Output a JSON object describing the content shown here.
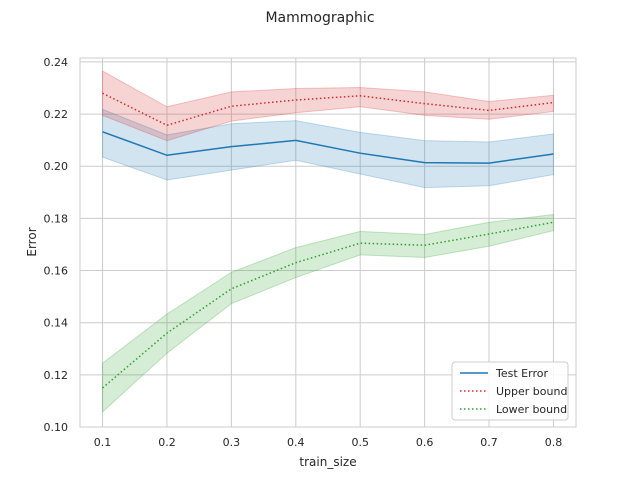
{
  "chart_data": {
    "type": "line",
    "title": "Mammographic",
    "xlabel": "train_size",
    "ylabel": "Error",
    "x": [
      0.1,
      0.2,
      0.3,
      0.4,
      0.5,
      0.6,
      0.7,
      0.8
    ],
    "xticks": [
      "0.1",
      "0.2",
      "0.3",
      "0.4",
      "0.5",
      "0.6",
      "0.7",
      "0.8"
    ],
    "yticks": [
      "0.10",
      "0.12",
      "0.14",
      "0.16",
      "0.18",
      "0.20",
      "0.22",
      "0.24"
    ],
    "ytick_values": [
      0.1,
      0.12,
      0.14,
      0.16,
      0.18,
      0.2,
      0.22,
      0.24
    ],
    "xlim": [
      0.065,
      0.835
    ],
    "ylim": [
      0.1,
      0.2415
    ],
    "grid": true,
    "legend_position": "lower-right",
    "series": [
      {
        "name": "Test Error",
        "color": "#1f77b4",
        "style": "solid",
        "values": [
          0.2132,
          0.2042,
          0.2075,
          0.2099,
          0.205,
          0.2014,
          0.2012,
          0.2047
        ],
        "lower": [
          0.2035,
          0.1947,
          0.1985,
          0.2023,
          0.197,
          0.1918,
          0.1925,
          0.1968
        ],
        "upper": [
          0.2218,
          0.212,
          0.2163,
          0.2175,
          0.213,
          0.2098,
          0.2093,
          0.2124
        ]
      },
      {
        "name": "Upper bound",
        "color": "#d62728",
        "style": "dotted",
        "values": [
          0.228,
          0.2157,
          0.223,
          0.2254,
          0.227,
          0.224,
          0.2214,
          0.2244
        ],
        "lower": [
          0.2195,
          0.2098,
          0.2173,
          0.2205,
          0.2228,
          0.2195,
          0.218,
          0.221
        ],
        "upper": [
          0.2365,
          0.2228,
          0.2285,
          0.2298,
          0.2302,
          0.2285,
          0.2248,
          0.2272
        ]
      },
      {
        "name": "Lower bound",
        "color": "#2ca02c",
        "style": "dotted",
        "values": [
          0.115,
          0.136,
          0.153,
          0.163,
          0.1705,
          0.1697,
          0.174,
          0.1785
        ],
        "lower": [
          0.1058,
          0.1283,
          0.1473,
          0.1573,
          0.166,
          0.165,
          0.1693,
          0.1753
        ],
        "upper": [
          0.1245,
          0.1433,
          0.1593,
          0.1688,
          0.175,
          0.1738,
          0.1785,
          0.1815
        ]
      }
    ]
  }
}
